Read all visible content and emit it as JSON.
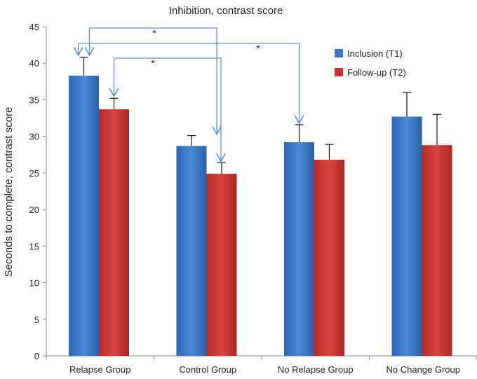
{
  "chart_data": {
    "type": "bar",
    "title": "Inhibition, contrast score",
    "xlabel": "",
    "ylabel": "Seconds to complete, contrast score",
    "ylim": [
      0,
      45
    ],
    "yticks": [
      0,
      5,
      10,
      15,
      20,
      25,
      30,
      35,
      40,
      45
    ],
    "categories": [
      "Relapse Group",
      "Control Group",
      "No Relapse Group",
      "No Change Group"
    ],
    "series": [
      {
        "name": "Inclusion (T1)",
        "color": "#3a78c8",
        "values": [
          38.3,
          28.7,
          29.2,
          32.7
        ],
        "errors": [
          2.5,
          1.4,
          2.4,
          3.3
        ]
      },
      {
        "name": "Follow-up (T2)",
        "color": "#c9312f",
        "values": [
          33.7,
          24.9,
          26.8,
          28.8
        ],
        "errors": [
          1.5,
          1.5,
          2.1,
          4.2
        ]
      }
    ],
    "legend_position": "top-right",
    "grid": false,
    "annotations": [
      {
        "label": "*",
        "from": "Relapse Group / Inclusion (T1)",
        "to": "Control Group / Inclusion (T1)"
      },
      {
        "label": "*",
        "from": "Relapse Group / Follow-up (T2)",
        "to": "Control Group / Follow-up (T2)"
      },
      {
        "label": "*",
        "from": "Relapse Group / Inclusion (T1)",
        "to": "No Relapse Group / Inclusion (T1)"
      }
    ]
  }
}
